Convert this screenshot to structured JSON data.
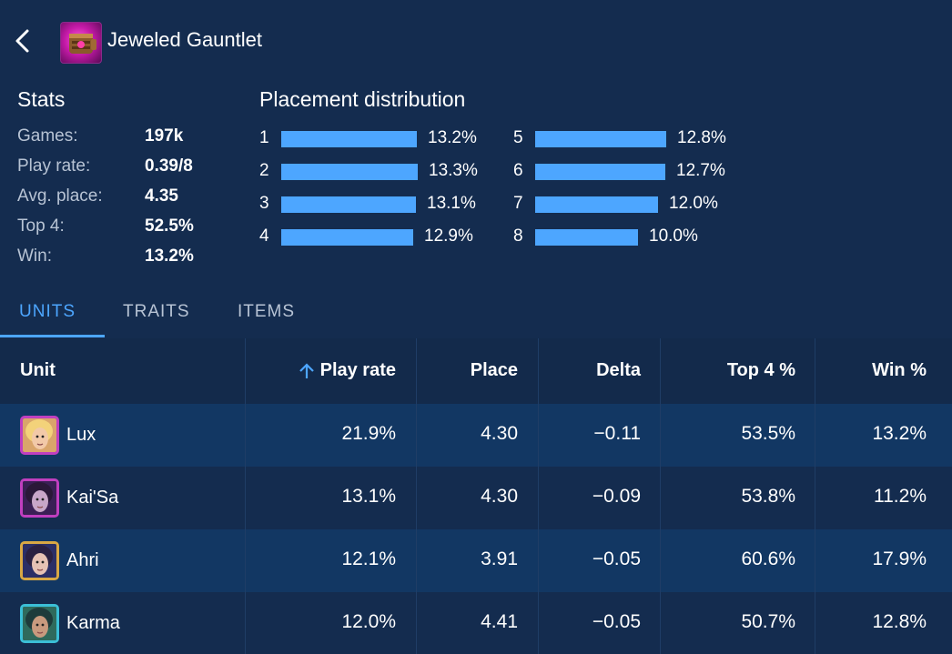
{
  "header": {
    "title": "Jeweled Gauntlet",
    "item_icon": "jeweled-gauntlet-icon",
    "back_icon": "chevron-left-icon"
  },
  "stats": {
    "heading": "Stats",
    "rows": [
      {
        "label": "Games:",
        "value": "197k"
      },
      {
        "label": "Play rate:",
        "value": "0.39/8"
      },
      {
        "label": "Avg. place:",
        "value": "4.35"
      },
      {
        "label": "Top 4:",
        "value": "52.5%"
      },
      {
        "label": "Win:",
        "value": "13.2%"
      }
    ]
  },
  "placement": {
    "heading": "Placement distribution",
    "rows": [
      {
        "rank": "1",
        "pct": "13.2%",
        "value": 13.2
      },
      {
        "rank": "2",
        "pct": "13.3%",
        "value": 13.3
      },
      {
        "rank": "3",
        "pct": "13.1%",
        "value": 13.1
      },
      {
        "rank": "4",
        "pct": "12.9%",
        "value": 12.9
      },
      {
        "rank": "5",
        "pct": "12.8%",
        "value": 12.8
      },
      {
        "rank": "6",
        "pct": "12.7%",
        "value": 12.7
      },
      {
        "rank": "7",
        "pct": "12.0%",
        "value": 12.0
      },
      {
        "rank": "8",
        "pct": "10.0%",
        "value": 10.0
      }
    ],
    "bar_color": "#4da6ff"
  },
  "tabs": [
    {
      "label": "UNITS",
      "active": true
    },
    {
      "label": "TRAITS",
      "active": false
    },
    {
      "label": "ITEMS",
      "active": false
    }
  ],
  "table": {
    "columns": [
      "Unit",
      "Play rate",
      "Place",
      "Delta",
      "Top 4 %",
      "Win %"
    ],
    "sort_icon": "arrow-up-icon",
    "rows": [
      {
        "unit": "Lux",
        "play_rate": "21.9%",
        "place": "4.30",
        "delta": "−0.11",
        "top4": "53.5%",
        "win": "13.2%",
        "border": "#c03fbf",
        "portrait": "lux-portrait-icon"
      },
      {
        "unit": "Kai'Sa",
        "play_rate": "13.1%",
        "place": "4.30",
        "delta": "−0.09",
        "top4": "53.8%",
        "win": "11.2%",
        "border": "#c03fbf",
        "portrait": "kaisa-portrait-icon"
      },
      {
        "unit": "Ahri",
        "play_rate": "12.1%",
        "place": "3.91",
        "delta": "−0.05",
        "top4": "60.6%",
        "win": "17.9%",
        "border": "#d9a844",
        "portrait": "ahri-portrait-icon"
      },
      {
        "unit": "Karma",
        "play_rate": "12.0%",
        "place": "4.41",
        "delta": "−0.05",
        "top4": "50.7%",
        "win": "12.8%",
        "border": "#3bbfd6",
        "portrait": "karma-portrait-icon"
      }
    ]
  }
}
